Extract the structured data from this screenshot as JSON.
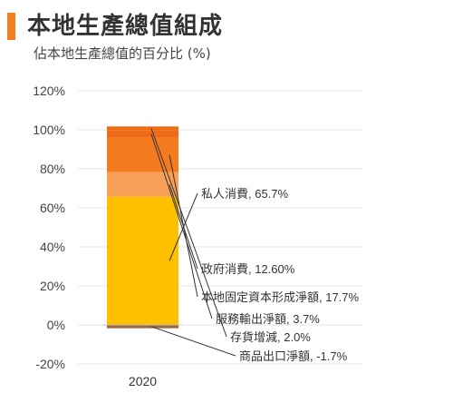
{
  "header": {
    "title": "本地生產總值組成",
    "subtitle": "佔本地生產總值的百分比 (%)",
    "accent_color": "#f07f1e"
  },
  "chart_data": {
    "type": "bar",
    "stacked": true,
    "title": "本地生產總值組成",
    "subtitle": "佔本地生產總值的百分比 (%)",
    "categories": [
      "2020"
    ],
    "ylim": [
      -20,
      120
    ],
    "yticks": [
      "120%",
      "100%",
      "80%",
      "60%",
      "40%",
      "20%",
      "0%",
      "-20%"
    ],
    "ytick_values": [
      120,
      100,
      80,
      60,
      40,
      20,
      0,
      -20
    ],
    "grid": true,
    "series": [
      {
        "name": "私人消費",
        "values": [
          65.7
        ],
        "label": "私人消費, 65.7%",
        "color": "#ffc000"
      },
      {
        "name": "政府消費",
        "values": [
          12.6
        ],
        "label": "政府消費, 12.60%",
        "color": "#f9a058"
      },
      {
        "name": "本地固定資本形成淨額",
        "values": [
          17.7
        ],
        "label": "本地固定資本形成淨額, 17.7%",
        "color": "#f47b20"
      },
      {
        "name": "服務輸出淨額",
        "values": [
          3.7
        ],
        "label": "服務輸出淨額, 3.7%",
        "color": "#ef6a18"
      },
      {
        "name": "存貨增減",
        "values": [
          2.0
        ],
        "label": "存貨增減, 2.0%",
        "color": "#f06c10"
      },
      {
        "name": "商品出口淨額",
        "values": [
          -1.7
        ],
        "label": "商品出口淨額, -1.7%",
        "color": "#9c6a3c"
      }
    ]
  }
}
